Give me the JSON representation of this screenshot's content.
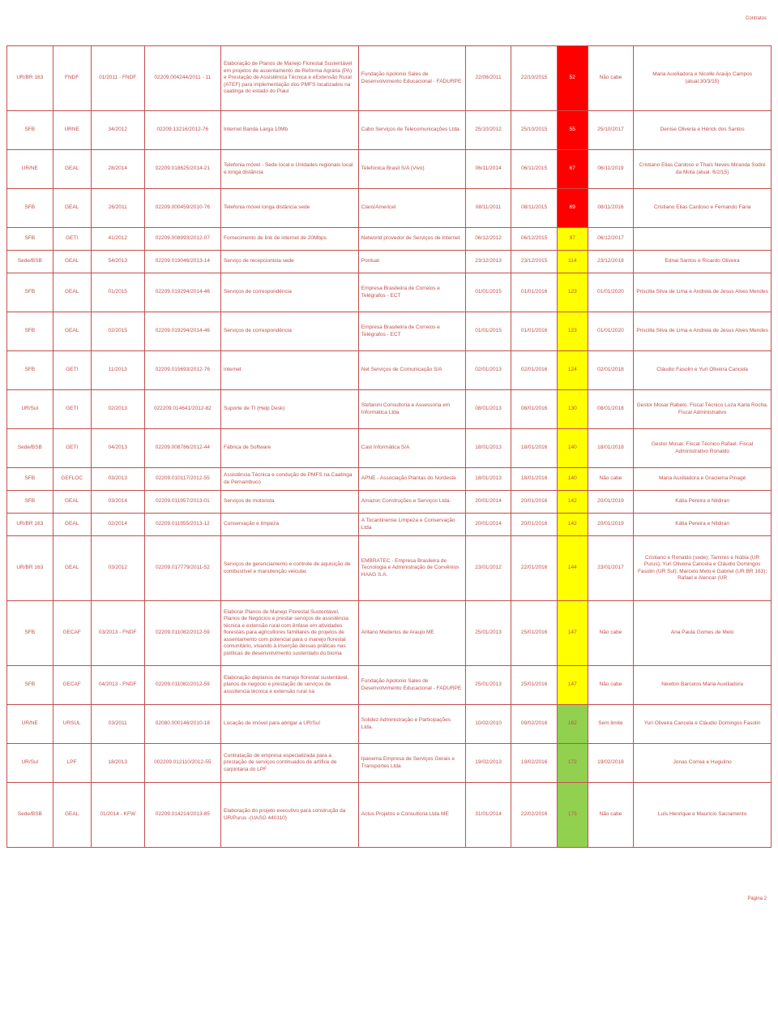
{
  "header_label": "Contratos",
  "footer_label": "Página 2",
  "col_widths_pct": [
    6,
    5,
    7,
    10,
    18,
    14,
    6,
    6,
    4,
    6,
    18
  ],
  "colors": {
    "text": "#c0504d",
    "border": "#c0504d",
    "bg_red": "#ff0000",
    "bg_yellow": "#ffff00",
    "bg_green": "#92d050",
    "bg_white": "#ffffff"
  },
  "rows": [
    {
      "height": "tall",
      "cells": [
        "UR/BR 163",
        "FNDF",
        "01/2011 - FNDF",
        "02209.004244/2011 - 11",
        "Elaboração de Planos de Manejo Florestal Sustentável em projetos de assentamento de Reforma Agrária (PA) e Prestação de Assistência Técnica e eExtensão Rural (ATEF) para implementação dos PMFS localizados na caatinga do estado do Piauí",
        "Fundação Apolonio Sales de Desenvolvimento Educacional - FADURPE",
        "22/08/2011",
        "22/10/2015",
        "52",
        "Não cabe",
        "Maria Auxiliadora e Nicolle Araújo Campos (atual.30/3/15)"
      ],
      "bg": [
        "",
        "",
        "",
        "",
        "",
        "",
        "",
        "",
        "red",
        "",
        ""
      ]
    },
    {
      "cells": [
        "SFB",
        "URNE",
        "34/2012",
        "02209.13216/2012-76",
        "Internet Banda Larga 10Mb",
        "Cabo Serviços de Telecomunicações Ltda.",
        "25/10/2012",
        "25/10/2015",
        "55",
        "25/10/2017",
        "Denise Oliveria e Hérick dos Santos"
      ],
      "bg": [
        "",
        "",
        "",
        "",
        "",
        "",
        "",
        "",
        "red",
        "",
        ""
      ]
    },
    {
      "cells": [
        "UR/NE",
        "GEAL",
        "28/2014",
        "02209.018625/2014-21",
        "Telefonia móvel - Sede local e Unidades regionais local e longa distância",
        "Telefonica Brasil S/A (Vivo)",
        "06/11/2014",
        "06/11/2015",
        "67",
        "06/11/2019",
        "Cristiano Elias Cardoso e Thaís Neves Miranda Sodré da Mota (atual. 6/2/15)"
      ],
      "bg": [
        "",
        "",
        "",
        "",
        "",
        "",
        "",
        "",
        "red",
        "",
        ""
      ]
    },
    {
      "cells": [
        "SFB",
        "GEAL",
        "26/2011",
        "02209.000459/2010-76",
        "Telefonia móvel longa distância sede",
        "Claro/Americel",
        "08/11/2011",
        "08/11/2015",
        "69",
        "08/11/2016",
        "Cristiano Elias Cardoso e Fernando Faria"
      ],
      "bg": [
        "",
        "",
        "",
        "",
        "",
        "",
        "",
        "",
        "red",
        "",
        ""
      ]
    },
    {
      "height": "short",
      "cells": [
        "SFB",
        "GETI",
        "41/2012",
        "02209.008993/2012-07",
        "Fornecimento de link de internet de 20Mbps",
        "Networld provedor de Serviços de Internet",
        "06/12/2012",
        "06/12/2015",
        "97",
        "06/12/2017",
        ""
      ],
      "bg": [
        "",
        "",
        "",
        "",
        "",
        "",
        "",
        "",
        "yellow",
        "",
        ""
      ]
    },
    {
      "height": "short",
      "cells": [
        "Sede/BSB",
        "GEAL",
        "54/2013",
        "02209.019046/2013-14",
        "Serviço de recepcionista sede",
        "Pontual",
        "23/12/2013",
        "23/12/2015",
        "114",
        "23/12/2018",
        "Ednai Santos e Ricardo Oliveira"
      ],
      "bg": [
        "",
        "",
        "",
        "",
        "",
        "",
        "",
        "",
        "yellow",
        "",
        ""
      ]
    },
    {
      "cells": [
        "SFB",
        "GEAL",
        "01/2015",
        "02209.019294/2014-46",
        "Serviços de correspondência",
        "Empresa Brasileiira de Correios e Telégrafos - ECT",
        "01/01/2015",
        "01/01/2016",
        "123",
        "01/01/2020",
        "Priscilla Silva de Lima e Andreia  de Jesus Alves Mendes"
      ],
      "bg": [
        "",
        "",
        "",
        "",
        "",
        "",
        "",
        "",
        "yellow",
        "",
        ""
      ]
    },
    {
      "cells": [
        "SFB",
        "GEAL",
        "02/2015",
        "02209.019294/2014-46",
        "Serviços de correspondência",
        "Empresa Brasileiira de Correios e Telégrafos - ECT",
        "01/01/2015",
        "01/01/2016",
        "123",
        "01/01/2020",
        "Priscilla Silva de Lima e Andreia  de Jesus Alves Mendes"
      ],
      "bg": [
        "",
        "",
        "",
        "",
        "",
        "",
        "",
        "",
        "yellow",
        "",
        ""
      ]
    },
    {
      "cells": [
        "SFB",
        "GETI",
        "11/2013",
        "02209.015693/2012-76",
        "internet",
        "Net Serviços de Comunicação S/A",
        "02/01/2013",
        "02/01/2016",
        "124",
        "02/01/2018",
        "Cláudio Fasolin e Yuri Oliveira Cancela"
      ],
      "bg": [
        "",
        "",
        "",
        "",
        "",
        "",
        "",
        "",
        "yellow",
        "",
        ""
      ]
    },
    {
      "cells": [
        "UR/Sul",
        "GETI",
        "02/2013",
        "022209.014641/2012-82",
        "Suporte de TI (Help Desk)",
        "Stefanini Consultoria e Assessoria em Informática Ltda",
        "08/01/2013",
        "08/01/2016",
        "130",
        "08/01/2018",
        "Gestor  Mosar Rabelo. Fiscal Técnico Luza Karla Rocha. Fiscal Administrativo"
      ],
      "bg": [
        "",
        "",
        "",
        "",
        "",
        "",
        "",
        "",
        "yellow",
        "",
        ""
      ]
    },
    {
      "cells": [
        "Sede/BSB",
        "GETI",
        "04/2013",
        "02209.008786/2012-44",
        "Fábrica de Software",
        "Cast Informática S/A",
        "18/01/2013",
        "18/01/2016",
        "140",
        "18/01/2018",
        "Gestor Mosar. Fiscal Técnico Rafael. Fiscal Administrativo Ronaldo"
      ],
      "bg": [
        "",
        "",
        "",
        "",
        "",
        "",
        "",
        "",
        "yellow",
        "",
        ""
      ]
    },
    {
      "height": "short",
      "cells": [
        "SFB",
        "GEFLOC",
        "03/2013",
        "02209.010117/2012-55",
        "Assistência Técnica e condução de PMFS na Caatinga de Pernambuco",
        "APNE - Associação Plantas do Nordeste",
        "18/01/2013",
        "18/01/2016",
        "140",
        "Não cabe",
        "Maria Auxiliadora e Graciema Pinagé"
      ],
      "bg": [
        "",
        "",
        "",
        "",
        "",
        "",
        "",
        "",
        "yellow",
        "",
        ""
      ]
    },
    {
      "height": "short",
      "cells": [
        "SFB",
        "GEAL",
        "03/2014",
        "02209.011957/2013-01",
        "Serviços de motorista",
        "Amazon Construções e Serviços Ltda.",
        "20/01/2014",
        "20/01/2016",
        "142",
        "20/01/2019",
        "Kátia Pereira e Nildiran"
      ],
      "bg": [
        "",
        "",
        "",
        "",
        "",
        "",
        "",
        "",
        "yellow",
        "",
        ""
      ]
    },
    {
      "height": "short",
      "cells": [
        "UR/BR 163",
        "GEAL",
        "02/2014",
        "02209.011955/2013-12",
        "Conservação e limpeza",
        "A Tocantinense Limpeza e Conservação Ltda",
        "20/01/2014",
        "20/01/2016",
        "142",
        "20/01/2019",
        "Kátia Pereira e Nildiran"
      ],
      "bg": [
        "",
        "",
        "",
        "",
        "",
        "",
        "",
        "",
        "yellow",
        "",
        ""
      ]
    },
    {
      "height": "tall",
      "cells": [
        "UR/BR 163",
        "GEAL",
        "03/2012",
        "02209.017779/2011-52",
        "Serviços de gerenciamento e controle de aquisição de combustível e manutenção veicular.",
        "EMBRATEC - Empresa Brasileira de Tecnologia e Administração de Convênios HAAG S.A.",
        "23/01/2012",
        "22/01/2016",
        "144",
        "23/01/2017",
        "Cristiano e Ronaldo (sede); Tamires e Núbia (UR Purus); Yuri Oliveira Cancela e Cláudio Domingos Fasolin (UR Sul); Marcelo Melo e Gabriel (UR BR 163); Rafael e Alencar (UR"
      ],
      "bg": [
        "",
        "",
        "",
        "",
        "",
        "",
        "",
        "",
        "yellow",
        "",
        ""
      ]
    },
    {
      "height": "tall",
      "cells": [
        "SFB",
        "GECAF",
        "03/2013 - FNDF",
        "02209.011082/2012-59",
        "Elaborar Planos de Manejo Florestal Sustentável, Planos de Negócios e prestar serviços de assistência técnica e extensão rural com ênfase em atividades florestais para agricultores familiares de projetos de assentamento com potencial para o manejo florestal comunitário, visando à inserção dessas práticas nas políticas de desenvolvimento sustentado do bioma",
        "Aritano Mederios de Araujo ME",
        "25/01/2013",
        "25/01/2016",
        "147",
        "Não cabe",
        "Ana Paula Gomes de Melo"
      ],
      "bg": [
        "",
        "",
        "",
        "",
        "",
        "",
        "",
        "",
        "yellow",
        "",
        ""
      ]
    },
    {
      "cells": [
        "SFB",
        "GECAF",
        "04/2013 - FNDF",
        "02209.011082/2012-59",
        "Elaboração deplanos de manejo florestal sustentável, planos de negócio e prestação de serviços de asssitencia técnica e extensão rural na",
        "Fundação Apolonio Sales de Desenvolvimento Educacional - FADURPE",
        "25/01/2013",
        "25/01/2016",
        "147",
        "Não cabe",
        "Newton Barcelos Maria Auxiliadora"
      ],
      "bg": [
        "",
        "",
        "",
        "",
        "",
        "",
        "",
        "",
        "yellow",
        "",
        ""
      ]
    },
    {
      "cells": [
        "UR/NE",
        "URSUL",
        "03/2011",
        "02080.000146/2010-18",
        "Locação de imóvel para abrigar a UR/Sul",
        "Solidez Administração e Participações Ltda.",
        "10/02/2010",
        "09/02/2016",
        "162",
        "Sem limite",
        "Yuri Oliveira Cancela e Cláudio Domingos Fasolin"
      ],
      "bg": [
        "",
        "",
        "",
        "",
        "",
        "",
        "",
        "",
        "green",
        "",
        ""
      ]
    },
    {
      "cells": [
        "UR/Sul",
        "LPF",
        "18/2013",
        "002209.012110/2012-55",
        "Contratação de empresa especializada para a prestação de serviços continuados de artífice de carpintaria do LPF",
        "Ipanema Empresa de Serviços Gerais e Transportes Ltda",
        "19/02/2013",
        "19/02/2016",
        "172",
        "19/02/2018",
        "Jonas Correa e Hugulino"
      ],
      "bg": [
        "",
        "",
        "",
        "",
        "",
        "",
        "",
        "",
        "green",
        "",
        ""
      ]
    },
    {
      "height": "tall",
      "cells": [
        "Sede/BSB",
        "GEAL",
        "01/2014 - KFW",
        "02209.014214/2013-85",
        "Elaboração do projeto executivo para construção da UR/Purus -(UASG 440110)",
        "Actus Projetos e Consultoria Ltda ME",
        "31/01/2014",
        "22/02/2016",
        "175",
        "Não cabe",
        "Luís Henrique e Maurício Sacramento"
      ],
      "bg": [
        "",
        "",
        "",
        "",
        "",
        "",
        "",
        "",
        "green",
        "",
        ""
      ]
    }
  ]
}
